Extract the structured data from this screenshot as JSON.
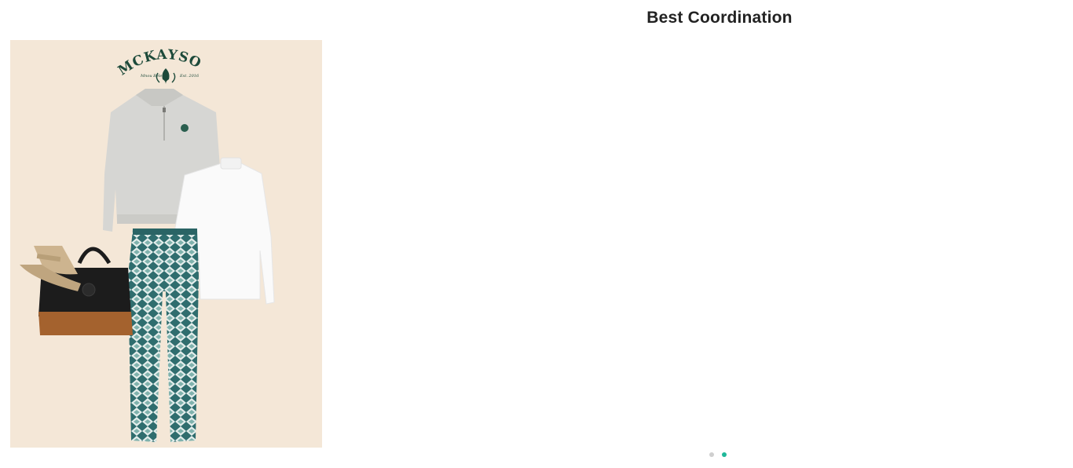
{
  "section": {
    "title": "Best Coordination"
  },
  "coordination_card": {
    "brand_logo_text": "MCKAYSON",
    "brand_logo_script_left": "Mnou Bele",
    "brand_logo_script_right": "Est. 2016",
    "items": [
      {
        "name": "grey-half-zip-sweatshirt-icon",
        "color": "#d6d6d3"
      },
      {
        "name": "white-mock-neck-top-icon",
        "color": "#fafafa"
      },
      {
        "name": "teal-diamond-pattern-pants-icon",
        "color": "#3e7f7f"
      },
      {
        "name": "beige-bucket-hat-icon",
        "color": "#cdb48f"
      },
      {
        "name": "black-leather-boston-bag-icon",
        "color": "#1c1c1c"
      }
    ],
    "background_color": "#f4e7d7"
  },
  "pagination": {
    "total": 2,
    "active_index": 1,
    "active_color": "#1fb89a",
    "inactive_color": "#cfcfcf"
  }
}
